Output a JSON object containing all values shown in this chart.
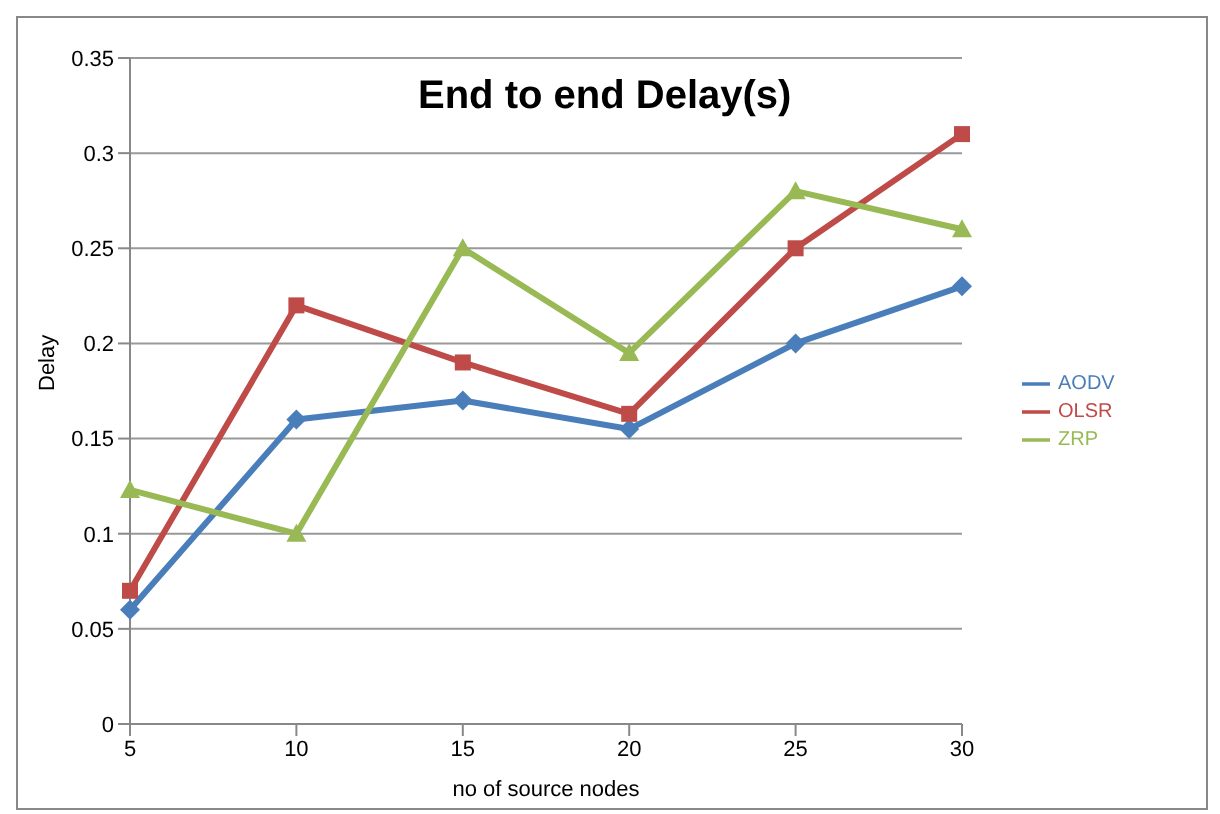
{
  "chart_data": {
    "type": "line",
    "title": "End to end Delay(s)",
    "xlabel": "no of source nodes",
    "ylabel": "Delay",
    "categories": [
      "5",
      "10",
      "15",
      "20",
      "25",
      "30"
    ],
    "series": [
      {
        "name": "AODV",
        "color": "#4a7ebb",
        "marker": "diamond",
        "values": [
          0.06,
          0.16,
          0.17,
          0.155,
          0.2,
          0.23
        ]
      },
      {
        "name": "OLSR",
        "color": "#be4b48",
        "marker": "square",
        "values": [
          0.07,
          0.22,
          0.19,
          0.163,
          0.25,
          0.31
        ]
      },
      {
        "name": "ZRP",
        "color": "#98b954",
        "marker": "triangle",
        "values": [
          0.123,
          0.1,
          0.25,
          0.195,
          0.28,
          0.26
        ]
      }
    ],
    "ylim": [
      0,
      0.35
    ],
    "yticks": [
      0,
      0.05,
      0.1,
      0.15,
      0.2,
      0.25,
      0.3,
      0.35
    ],
    "grid": "y",
    "legend": "right"
  }
}
